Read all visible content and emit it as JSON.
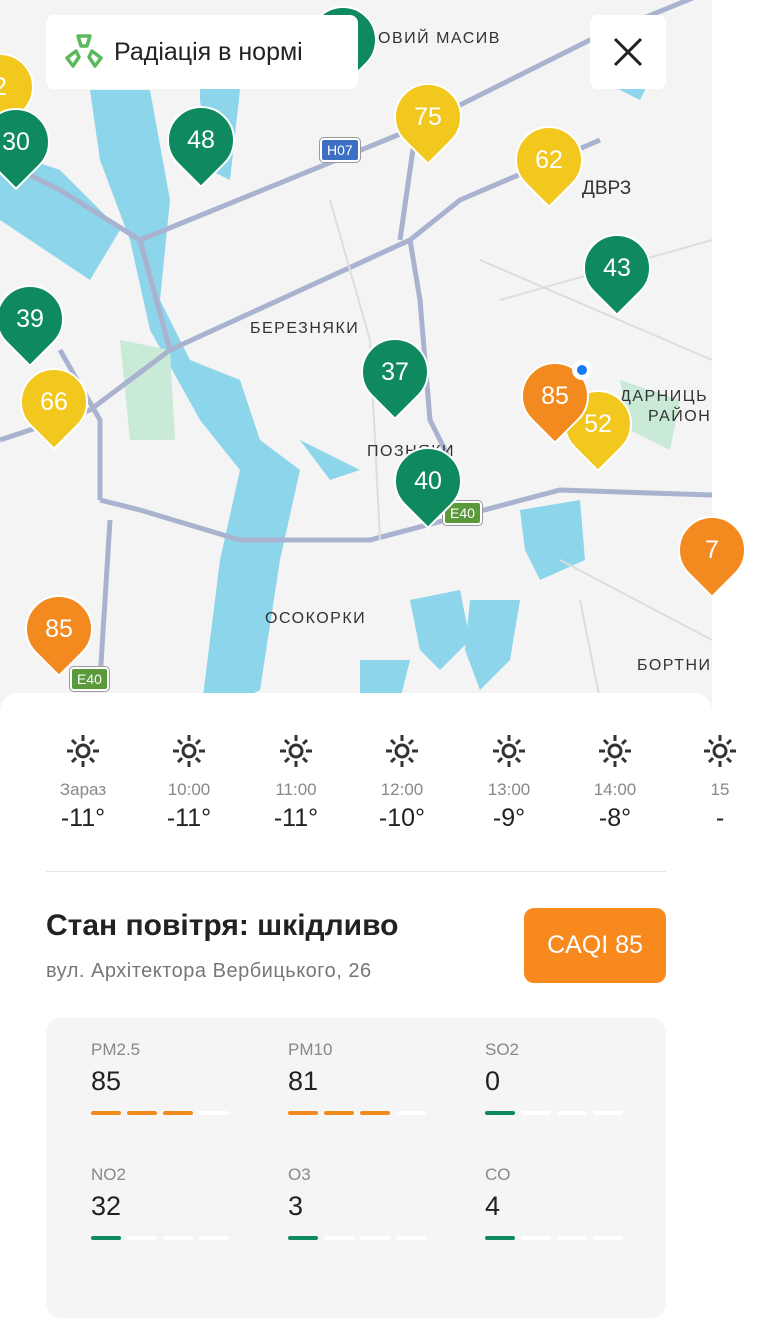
{
  "banner": {
    "icon": "radiation-icon",
    "text": "Радіація в нормі",
    "icon_color": "#5cb85c"
  },
  "close_icon": "close-icon",
  "map": {
    "labels": [
      "ОВИЙ МАСИВ",
      "ДВРЗ",
      "БЕРЕЗНЯКИ",
      "ПОЗНЯКИ",
      "ДАРНИЦЬ",
      "РАЙОН",
      "ОСОКОРКИ",
      "БОРТНИ"
    ],
    "road_shields": [
      "Н07",
      "E40",
      "E40"
    ],
    "pins": [
      {
        "value": "2",
        "level": "y"
      },
      {
        "value": "30",
        "level": "g"
      },
      {
        "value": "48",
        "level": "g"
      },
      {
        "value": "75",
        "level": "y"
      },
      {
        "value": "62",
        "level": "y"
      },
      {
        "value": "43",
        "level": "g"
      },
      {
        "value": "39",
        "level": "g"
      },
      {
        "value": "66",
        "level": "y"
      },
      {
        "value": "37",
        "level": "g"
      },
      {
        "value": "85",
        "level": "o"
      },
      {
        "value": "52",
        "level": "y"
      },
      {
        "value": "40",
        "level": "g"
      },
      {
        "value": "85",
        "level": "o"
      },
      {
        "value": "7",
        "level": "o"
      }
    ],
    "colors": {
      "good": "#0f8a5f",
      "moderate": "#f2c81e",
      "unhealthy": "#f38a20",
      "water": "#8dd5ea",
      "park": "#c9ead6"
    }
  },
  "forecast": [
    {
      "time": "Зараз",
      "temp": "-11°",
      "icon": "sun-icon"
    },
    {
      "time": "10:00",
      "temp": "-11°",
      "icon": "sun-icon"
    },
    {
      "time": "11:00",
      "temp": "-11°",
      "icon": "sun-icon"
    },
    {
      "time": "12:00",
      "temp": "-10°",
      "icon": "sun-icon"
    },
    {
      "time": "13:00",
      "temp": "-9°",
      "icon": "sun-icon"
    },
    {
      "time": "14:00",
      "temp": "-8°",
      "icon": "sun-icon"
    },
    {
      "time": "15",
      "temp": "-",
      "icon": "sun-icon"
    }
  ],
  "air": {
    "title": "Стан повітря: шкідливо",
    "address": "вул. Архітектора Вербицького, 26",
    "caqi_label": "CAQI 85",
    "caqi_color": "#f7891f",
    "pollutants": [
      {
        "name": "PM2.5",
        "value": "85",
        "level_segments": 3,
        "color": "#f38a20"
      },
      {
        "name": "PM10",
        "value": "81",
        "level_segments": 3,
        "color": "#f38a20"
      },
      {
        "name": "SO2",
        "value": "0",
        "level_segments": 1,
        "color": "#0f8a5f"
      },
      {
        "name": "NO2",
        "value": "32",
        "level_segments": 1,
        "color": "#0f8a5f"
      },
      {
        "name": "O3",
        "value": "3",
        "level_segments": 1,
        "color": "#0f8a5f"
      },
      {
        "name": "CO",
        "value": "4",
        "level_segments": 1,
        "color": "#0f8a5f"
      }
    ]
  }
}
